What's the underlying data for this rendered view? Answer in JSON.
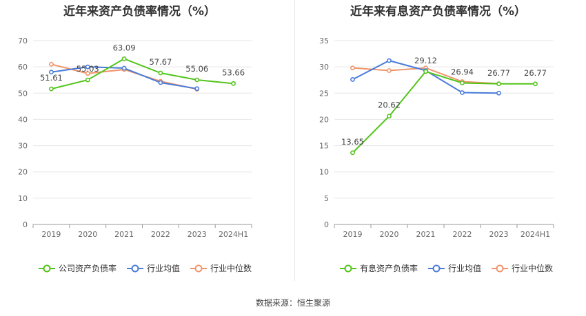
{
  "source_text": "数据来源：恒生聚源",
  "colors": {
    "company": "#52c41a",
    "avg": "#4a7bd8",
    "median": "#f0956a",
    "grid": "#e6e6e6",
    "axis": "#999999",
    "label": "#444444"
  },
  "chart_data": [
    {
      "type": "line",
      "title": "近年来资产负债率情况（%）",
      "categories": [
        "2019",
        "2020",
        "2021",
        "2022",
        "2023",
        "2024H1"
      ],
      "ylim": [
        0,
        70
      ],
      "yticks": [
        0,
        10,
        20,
        30,
        40,
        50,
        60,
        70
      ],
      "grid": true,
      "legend_position": "bottom",
      "series": [
        {
          "name": "公司资产负债率",
          "color": "#52c41a",
          "values": [
            51.61,
            55.03,
            63.09,
            57.67,
            55.06,
            53.66
          ],
          "labels": [
            "51.61",
            "55.03",
            "63.09",
            "57.67",
            "55.06",
            "53.66"
          ]
        },
        {
          "name": "行业均值",
          "color": "#4a7bd8",
          "values": [
            58.0,
            60.0,
            59.5,
            54.0,
            51.7,
            null
          ]
        },
        {
          "name": "行业中位数",
          "color": "#f0956a",
          "values": [
            61.0,
            57.5,
            59.0,
            54.5,
            51.5,
            null
          ]
        }
      ]
    },
    {
      "type": "line",
      "title": "近年来有息资产负债率情况（%）",
      "categories": [
        "2019",
        "2020",
        "2021",
        "2022",
        "2023",
        "2024H1"
      ],
      "ylim": [
        0,
        35
      ],
      "yticks": [
        0,
        5,
        10,
        15,
        20,
        25,
        30,
        35
      ],
      "grid": true,
      "legend_position": "bottom",
      "series": [
        {
          "name": "有息资产负债率",
          "color": "#52c41a",
          "values": [
            13.65,
            20.62,
            29.12,
            26.94,
            26.77,
            26.77
          ],
          "labels": [
            "13.65",
            "20.62",
            "29.12",
            "26.94",
            "26.77",
            "26.77"
          ]
        },
        {
          "name": "行业均值",
          "color": "#4a7bd8",
          "values": [
            27.6,
            31.2,
            29.3,
            25.1,
            25.0,
            null
          ]
        },
        {
          "name": "行业中位数",
          "color": "#f0956a",
          "values": [
            29.8,
            29.3,
            29.8,
            27.2,
            26.8,
            null
          ]
        }
      ]
    }
  ]
}
